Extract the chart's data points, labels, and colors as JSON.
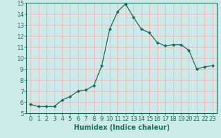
{
  "x": [
    0,
    1,
    2,
    3,
    4,
    5,
    6,
    7,
    8,
    9,
    10,
    11,
    12,
    13,
    14,
    15,
    16,
    17,
    18,
    19,
    20,
    21,
    22,
    23
  ],
  "y": [
    5.8,
    5.6,
    5.6,
    5.6,
    6.2,
    6.5,
    7.0,
    7.1,
    7.5,
    9.3,
    12.6,
    14.2,
    14.9,
    13.7,
    12.6,
    12.3,
    11.4,
    11.1,
    11.2,
    11.2,
    10.7,
    9.0,
    9.2,
    9.3
  ],
  "xlabel": "Humidex (Indice chaleur)",
  "xlim": [
    -0.5,
    23.5
  ],
  "ylim": [
    5,
    15
  ],
  "yticks": [
    5,
    6,
    7,
    8,
    9,
    10,
    11,
    12,
    13,
    14,
    15
  ],
  "xticks": [
    0,
    1,
    2,
    3,
    4,
    5,
    6,
    7,
    8,
    9,
    10,
    11,
    12,
    13,
    14,
    15,
    16,
    17,
    18,
    19,
    20,
    21,
    22,
    23
  ],
  "line_color": "#1a6b5a",
  "marker": "D",
  "marker_size": 2.0,
  "bg_color": "#cceae8",
  "grid_color": "#e8b8b8",
  "spine_color": "#1a6b5a",
  "tick_color": "#1a6b5a",
  "xlabel_fontsize": 7,
  "tick_fontsize": 6
}
